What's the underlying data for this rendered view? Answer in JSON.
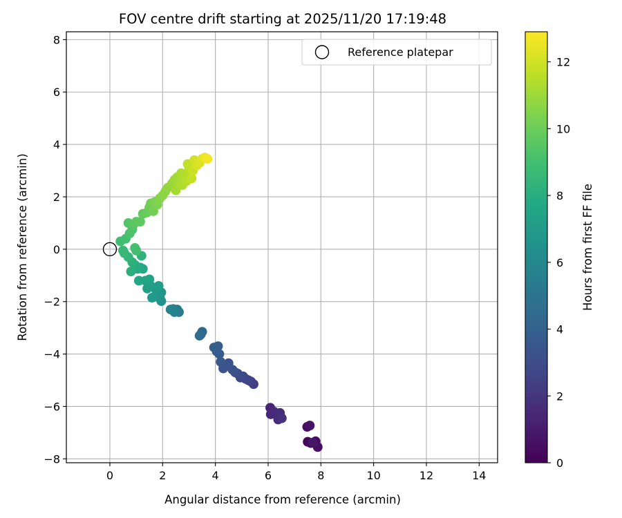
{
  "chart_data": {
    "type": "scatter",
    "title": "FOV centre drift starting at 2025/11/20 17:19:48",
    "xlabel": "Angular distance from reference (arcmin)",
    "ylabel": "Rotation from reference (arcmin)",
    "xlim": [
      -1.65,
      14.7
    ],
    "ylim": [
      -8.15,
      8.3
    ],
    "xticks": [
      0,
      2,
      4,
      6,
      8,
      10,
      12,
      14
    ],
    "yticks": [
      -8,
      -6,
      -4,
      -2,
      0,
      2,
      4,
      6,
      8
    ],
    "grid": true,
    "legend": {
      "position": "top-right",
      "label": "Reference platepar"
    },
    "reference_point": {
      "x": 0,
      "y": 0,
      "marker": "open-circle"
    },
    "colorbar": {
      "label": "Hours from first FF file",
      "colormap": "viridis",
      "range": [
        0,
        12.9
      ],
      "ticks": [
        0,
        2,
        4,
        6,
        8,
        10,
        12
      ]
    },
    "points": [
      [
        7.5,
        -7.35,
        0.2
      ],
      [
        7.62,
        -7.4,
        0.3
      ],
      [
        7.8,
        -7.33,
        0.4
      ],
      [
        7.88,
        -7.55,
        0.5
      ],
      [
        7.48,
        -6.78,
        0.6
      ],
      [
        7.58,
        -6.73,
        0.7
      ],
      [
        7.7,
        -7.38,
        0.8
      ],
      [
        6.08,
        -6.05,
        1.3
      ],
      [
        6.1,
        -6.3,
        1.4
      ],
      [
        6.22,
        -6.2,
        1.5
      ],
      [
        6.38,
        -6.5,
        1.6
      ],
      [
        6.45,
        -6.25,
        1.7
      ],
      [
        6.52,
        -6.45,
        1.8
      ],
      [
        5.45,
        -5.15,
        2.4
      ],
      [
        5.35,
        -5.05,
        2.5
      ],
      [
        5.25,
        -5.0,
        2.6
      ],
      [
        5.15,
        -4.95,
        2.7
      ],
      [
        5.05,
        -4.85,
        2.8
      ],
      [
        4.95,
        -4.9,
        2.9
      ],
      [
        4.85,
        -4.75,
        3.0
      ],
      [
        4.75,
        -4.7,
        3.1
      ],
      [
        4.65,
        -4.6,
        3.2
      ],
      [
        4.5,
        -4.35,
        3.3
      ],
      [
        4.3,
        -4.55,
        3.4
      ],
      [
        4.2,
        -4.3,
        3.5
      ],
      [
        4.15,
        -4.0,
        3.6
      ],
      [
        4.05,
        -3.9,
        3.7
      ],
      [
        4.1,
        -3.7,
        3.8
      ],
      [
        3.95,
        -3.75,
        3.9
      ],
      [
        3.5,
        -3.15,
        4.4
      ],
      [
        3.45,
        -3.25,
        4.5
      ],
      [
        3.4,
        -3.3,
        4.6
      ],
      [
        2.62,
        -2.4,
        5.3
      ],
      [
        2.55,
        -2.3,
        5.4
      ],
      [
        2.45,
        -2.4,
        5.5
      ],
      [
        2.4,
        -2.28,
        5.6
      ],
      [
        2.3,
        -2.3,
        5.7
      ],
      [
        1.95,
        -1.98,
        6.5
      ],
      [
        1.9,
        -1.85,
        6.6
      ],
      [
        1.95,
        -1.65,
        6.7
      ],
      [
        1.8,
        -1.8,
        6.8
      ],
      [
        1.75,
        -1.55,
        6.9
      ],
      [
        1.6,
        -1.85,
        7.0
      ],
      [
        1.85,
        -1.4,
        7.1
      ],
      [
        1.55,
        -1.4,
        7.2
      ],
      [
        1.42,
        -1.5,
        7.3
      ],
      [
        1.5,
        -1.15,
        7.4
      ],
      [
        1.35,
        -1.2,
        7.5
      ],
      [
        1.1,
        -1.2,
        7.6
      ],
      [
        1.25,
        -0.75,
        7.7
      ],
      [
        1.15,
        -0.7,
        7.8
      ],
      [
        1.05,
        -0.75,
        7.9
      ],
      [
        0.95,
        -0.6,
        8.0
      ],
      [
        0.8,
        -0.85,
        8.1
      ],
      [
        0.85,
        -0.5,
        8.2
      ],
      [
        1.2,
        -0.25,
        8.3
      ],
      [
        0.7,
        -0.3,
        8.4
      ],
      [
        0.55,
        -0.15,
        8.5
      ],
      [
        0.5,
        -0.05,
        8.6
      ],
      [
        0.4,
        0.3,
        8.9
      ],
      [
        0.6,
        0.4,
        9.0
      ],
      [
        0.95,
        0.05,
        9.1
      ],
      [
        1.0,
        -0.05,
        9.0
      ],
      [
        0.75,
        0.6,
        9.2
      ],
      [
        0.85,
        0.75,
        9.3
      ],
      [
        0.7,
        1.0,
        9.4
      ],
      [
        0.9,
        0.95,
        9.5
      ],
      [
        1.0,
        1.05,
        9.6
      ],
      [
        1.15,
        1.05,
        9.7
      ],
      [
        1.25,
        1.35,
        9.8
      ],
      [
        1.4,
        1.4,
        9.9
      ],
      [
        1.5,
        1.6,
        10.0
      ],
      [
        1.55,
        1.75,
        10.1
      ],
      [
        1.65,
        1.45,
        10.2
      ],
      [
        1.7,
        1.8,
        10.3
      ],
      [
        1.8,
        1.7,
        10.4
      ],
      [
        1.9,
        1.95,
        10.5
      ],
      [
        2.0,
        2.05,
        10.6
      ],
      [
        2.1,
        2.2,
        10.7
      ],
      [
        2.2,
        2.35,
        10.8
      ],
      [
        2.35,
        2.5,
        10.9
      ],
      [
        2.45,
        2.65,
        11.0
      ],
      [
        2.55,
        2.75,
        11.1
      ],
      [
        2.5,
        2.25,
        11.15
      ],
      [
        2.6,
        2.55,
        11.2
      ],
      [
        2.7,
        2.9,
        11.3
      ],
      [
        2.75,
        2.45,
        11.35
      ],
      [
        2.85,
        2.8,
        11.4
      ],
      [
        2.9,
        2.6,
        11.5
      ],
      [
        3.0,
        3.05,
        11.6
      ],
      [
        2.95,
        3.25,
        11.7
      ],
      [
        3.1,
        2.7,
        11.8
      ],
      [
        3.15,
        3.0,
        11.9
      ],
      [
        3.2,
        3.4,
        12.0
      ],
      [
        3.3,
        3.2,
        12.1
      ],
      [
        3.4,
        3.3,
        12.2
      ],
      [
        3.5,
        3.45,
        12.3
      ],
      [
        3.6,
        3.5,
        12.5
      ],
      [
        3.7,
        3.45,
        12.7
      ]
    ]
  }
}
